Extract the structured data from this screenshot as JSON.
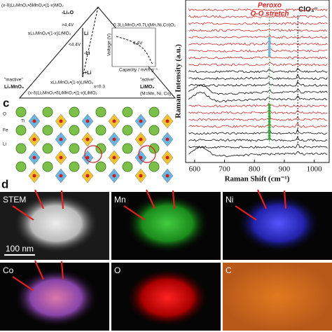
{
  "panel_a": {
    "top_formula": "(x-δ)Li₂MnO₃•δMnO₂•(1-x)MO₂",
    "li2o": "-Li₂O",
    "high_v": ">4.4V",
    "mid_formula": "xLi₂MnO₃•(1-x)LiMO₂",
    "low_v": "<4.4V",
    "li_1": "Li",
    "li_2": "-Li",
    "li_3": "+Li",
    "x_value": "x≈0.3",
    "bottom_formula_1": "xLi₂MnO₃•(1-x)LiMO₂",
    "bottom_formula_2": "(x-δ)Li₂MnO₃•δLiMnO₂•(1-x)LiMO₂",
    "inactive": "\"inactive\"",
    "inactive_formula": "Li₂MnO₃",
    "active": "\"active\"",
    "active_formula": "LiMO₂",
    "active_note": "(M=Mn, Ni, Co)",
    "inset_voltage": "4.4V",
    "inset_y": "Voltage (V)",
    "inset_x": "Capacity / mAh g⁻¹",
    "inset_title": "0.3Li₂MnO₃•0.7Li(Mn,Ni,Co)O₂"
  },
  "panel_b": {
    "y_label": "Raman Intensity (a.u.)",
    "x_label": "Raman Shift (cm⁻¹)",
    "peroxo_1": "Peroxo",
    "peroxo_2": "O-O stretch",
    "clo4": "ClO₄⁻",
    "xlim": [
      570,
      1050
    ],
    "xticks": [
      600,
      700,
      800,
      900,
      1000
    ]
  },
  "panel_c": {
    "label": "c",
    "o": "O",
    "ti": "Ti",
    "fe": "Fe",
    "li": "Li"
  },
  "panel_d": {
    "label": "d",
    "scale_bar": "100 nm",
    "maps": [
      {
        "label": "STEM"
      },
      {
        "label": "Mn"
      },
      {
        "label": "Ni"
      },
      {
        "label": "Co"
      },
      {
        "label": "O"
      },
      {
        "label": "C"
      }
    ]
  }
}
